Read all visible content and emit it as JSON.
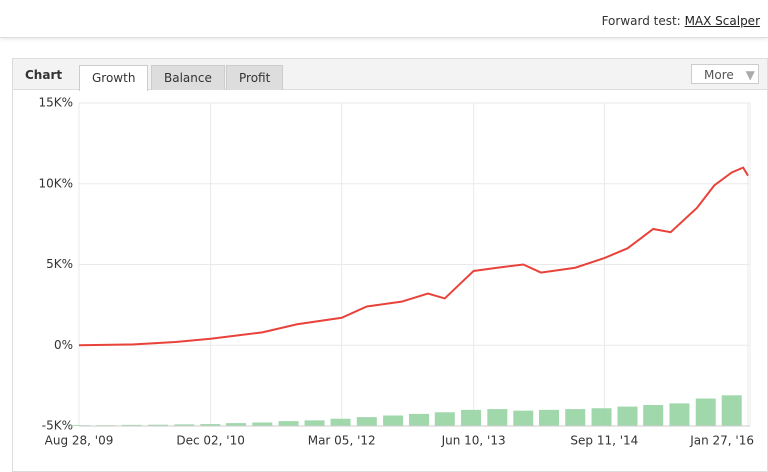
{
  "header": {
    "label": "Forward test:",
    "link": "MAX Scalper"
  },
  "panel": {
    "title": "Chart",
    "tabs": [
      "Growth",
      "Balance",
      "Profit"
    ],
    "more": "More"
  },
  "chart_data": {
    "type": "line",
    "xlim": [
      "2009-08-28",
      "2016-02-03"
    ],
    "xticks": [
      {
        "value": "2009-08-28",
        "label": "Aug 28, '09"
      },
      {
        "value": "2010-12-02",
        "label": "Dec 02, '10"
      },
      {
        "value": "2012-03-05",
        "label": "Mar 05, '12"
      },
      {
        "value": "2013-06-10",
        "label": "Jun 10, '13"
      },
      {
        "value": "2014-09-11",
        "label": "Sep 11, '14"
      },
      {
        "value": "2016-01-27",
        "label": "Jan 27, '16"
      }
    ],
    "ylim": [
      -5000,
      15000
    ],
    "yticks": [
      {
        "value": -5000,
        "label": "-5K%"
      },
      {
        "value": 0,
        "label": "0%"
      },
      {
        "value": 5000,
        "label": "5K%"
      },
      {
        "value": 10000,
        "label": "10K%"
      },
      {
        "value": 15000,
        "label": "15K%"
      }
    ],
    "grid": true,
    "series": [
      {
        "type": "line",
        "color": "#e8423a",
        "x": [
          "2009-08-28",
          "2010-03-01",
          "2010-08-01",
          "2010-12-02",
          "2011-06-01",
          "2011-10-01",
          "2012-03-05",
          "2012-06-01",
          "2012-10-01",
          "2013-01-01",
          "2013-03-01",
          "2013-06-10",
          "2013-09-01",
          "2013-12-01",
          "2014-02-01",
          "2014-06-01",
          "2014-09-11",
          "2014-12-01",
          "2015-03-01",
          "2015-05-01",
          "2015-08-01",
          "2015-10-01",
          "2015-12-01",
          "2016-01-10",
          "2016-01-27"
        ],
        "values": [
          0,
          50,
          200,
          400,
          800,
          1300,
          1700,
          2400,
          2700,
          3200,
          2900,
          4600,
          4800,
          5000,
          4500,
          4800,
          5400,
          6000,
          7200,
          7000,
          8500,
          9900,
          10700,
          11000,
          10500
        ]
      },
      {
        "type": "bar",
        "color": "#8fd19e",
        "x": [
          "2009-09-01",
          "2009-12-01",
          "2010-03-01",
          "2010-06-01",
          "2010-09-01",
          "2010-12-01",
          "2011-03-01",
          "2011-06-01",
          "2011-09-01",
          "2011-12-01",
          "2012-03-01",
          "2012-06-01",
          "2012-09-01",
          "2012-12-01",
          "2013-03-01",
          "2013-06-01",
          "2013-09-01",
          "2013-12-01",
          "2014-03-01",
          "2014-06-01",
          "2014-09-01",
          "2014-12-01",
          "2015-03-01",
          "2015-06-01",
          "2015-09-01",
          "2015-12-01"
        ],
        "values": [
          -4950,
          -4950,
          -4930,
          -4920,
          -4900,
          -4880,
          -4820,
          -4780,
          -4700,
          -4650,
          -4550,
          -4450,
          -4350,
          -4250,
          -4150,
          -4000,
          -3950,
          -4050,
          -4000,
          -3950,
          -3900,
          -3800,
          -3700,
          -3600,
          -3300,
          -3100
        ]
      }
    ]
  }
}
